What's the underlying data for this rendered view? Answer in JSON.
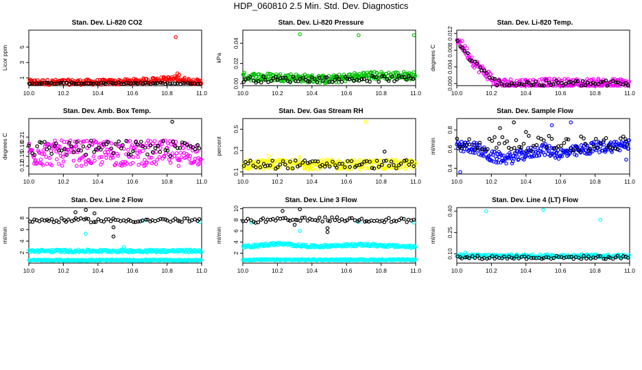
{
  "page": {
    "title": "HDP_060810  2.5 Min. Std. Dev. Diagnostics"
  },
  "chart_data": [
    {
      "id": "co2",
      "type": "scatter",
      "title": "Stan. Dev. Li-820 CO2",
      "ylabel": "Licor ppm",
      "xlim": [
        10.0,
        11.0
      ],
      "ylim": [
        0,
        7.2
      ],
      "xticks": [
        10.0,
        10.2,
        10.4,
        10.6,
        10.8,
        11.0
      ],
      "yticks": [
        1,
        3,
        5
      ],
      "yticklabels": [
        "1",
        "3",
        "5"
      ],
      "legend": "none",
      "series": [
        {
          "name": "primary",
          "color": "#ff0000",
          "base": [
            [
              10.0,
              0.45
            ],
            [
              10.5,
              0.45
            ],
            [
              10.7,
              0.65
            ],
            [
              10.85,
              0.9
            ],
            [
              11.0,
              0.4
            ]
          ],
          "jitter": 0.35,
          "outliers": [
            [
              10.85,
              6.3
            ],
            [
              10.86,
              1.6
            ],
            [
              10.87,
              1.4
            ],
            [
              10.72,
              1.0
            ],
            [
              10.78,
              1.1
            ]
          ]
        },
        {
          "name": "secondary",
          "color": "#000000",
          "base": [
            [
              10.0,
              0.3
            ],
            [
              11.0,
              0.3
            ]
          ],
          "jitter": 0.1,
          "outliers": []
        }
      ]
    },
    {
      "id": "pressure",
      "type": "scatter",
      "title": "Stan. Dev. Li-820 Pressure",
      "ylabel": "kPa",
      "xlim": [
        10.0,
        11.0
      ],
      "ylim": [
        -0.002,
        0.053
      ],
      "xticks": [
        10.0,
        10.2,
        10.4,
        10.6,
        10.8,
        11.0
      ],
      "yticks": [
        0.0,
        0.02,
        0.04
      ],
      "yticklabels": [
        "0.00",
        "0.02",
        "0.04"
      ],
      "legend": "none",
      "series": [
        {
          "name": "primary",
          "color": "#00c000",
          "base": [
            [
              10.0,
              0.007
            ],
            [
              10.3,
              0.006
            ],
            [
              10.5,
              0.004
            ],
            [
              10.7,
              0.008
            ],
            [
              11.0,
              0.008
            ]
          ],
          "jitter": 0.004,
          "outliers": [
            [
              10.33,
              0.049
            ],
            [
              10.67,
              0.048
            ],
            [
              10.99,
              0.048
            ]
          ]
        },
        {
          "name": "secondary",
          "color": "#000000",
          "base": [
            [
              10.0,
              0.004
            ],
            [
              11.0,
              0.005
            ]
          ],
          "jitter": 0.003,
          "outliers": []
        }
      ]
    },
    {
      "id": "temp",
      "type": "scatter",
      "title": "Stan. Dev. Li-820 Temp.",
      "ylabel": "degrees C",
      "xlim": [
        10.0,
        11.0
      ],
      "ylim": [
        -0.0005,
        0.0128
      ],
      "xticks": [
        10.0,
        10.2,
        10.4,
        10.6,
        10.8,
        11.0
      ],
      "yticks": [
        0.0,
        0.004,
        0.008,
        0.012
      ],
      "yticklabels": [
        "0.000",
        "0.004",
        "0.008",
        "0.012"
      ],
      "legend": "none",
      "series": [
        {
          "name": "primary",
          "color": "#ff00ff",
          "base": [
            [
              10.0,
              0.011
            ],
            [
              10.05,
              0.008
            ],
            [
              10.1,
              0.005
            ],
            [
              10.15,
              0.003
            ],
            [
              10.2,
              0.0015
            ],
            [
              10.22,
              0.0
            ],
            [
              11.0,
              0.0
            ]
          ],
          "jitter": 0.0012,
          "outliers": []
        },
        {
          "name": "secondary",
          "color": "#000000",
          "base": [
            [
              10.0,
              0.01
            ],
            [
              10.06,
              0.007
            ],
            [
              10.12,
              0.004
            ],
            [
              10.2,
              0.001
            ],
            [
              10.25,
              0.0
            ],
            [
              11.0,
              0.0
            ]
          ],
          "jitter": 0.0008,
          "outliers": []
        }
      ]
    },
    {
      "id": "boxtemp",
      "type": "scatter",
      "title": "Stan. Dev. Amb. Box Temp.",
      "ylabel": "degrees C",
      "xlim": [
        10.0,
        11.0
      ],
      "ylim": [
        0.095,
        0.268
      ],
      "xticks": [
        10.0,
        10.2,
        10.4,
        10.6,
        10.8,
        11.0
      ],
      "yticks": [
        0.12,
        0.15,
        0.18,
        0.21
      ],
      "yticklabels": [
        "0.12",
        "0.15",
        "0.18",
        "0.21"
      ],
      "legend": "none",
      "series": [
        {
          "name": "primary",
          "color": "#ff00ff",
          "base": [
            [
              10.0,
              0.16
            ],
            [
              11.0,
              0.16
            ]
          ],
          "jitter": 0.04,
          "outliers": []
        },
        {
          "name": "secondary",
          "color": "#000000",
          "base": [
            [
              10.0,
              0.175
            ],
            [
              11.0,
              0.175
            ]
          ],
          "jitter": 0.025,
          "outliers": [
            [
              10.83,
              0.258
            ]
          ]
        }
      ]
    },
    {
      "id": "rh",
      "type": "scatter",
      "title": "Stan. Dev. Gas Stream RH",
      "ylabel": "percent",
      "xlim": [
        10.0,
        11.0
      ],
      "ylim": [
        0.08,
        0.6
      ],
      "xticks": [
        10.0,
        10.2,
        10.4,
        10.6,
        10.8,
        11.0
      ],
      "yticks": [
        0.1,
        0.3,
        0.5
      ],
      "yticklabels": [
        "0.1",
        "0.3",
        "0.5"
      ],
      "legend": "none",
      "series": [
        {
          "name": "primary",
          "color": "#ffff00",
          "base": [
            [
              10.0,
              0.17
            ],
            [
              11.0,
              0.17
            ]
          ],
          "jitter": 0.045,
          "outliers": [
            [
              10.71,
              0.57
            ],
            [
              10.15,
              0.25
            ],
            [
              10.33,
              0.24
            ]
          ]
        },
        {
          "name": "secondary",
          "color": "#000000",
          "base": [
            [
              10.0,
              0.17
            ],
            [
              11.0,
              0.17
            ]
          ],
          "jitter": 0.04,
          "outliers": [
            [
              10.82,
              0.29
            ]
          ]
        }
      ]
    },
    {
      "id": "sampleflow",
      "type": "scatter",
      "title": "Stan. Dev. Sample Flow",
      "ylabel": "ml/min",
      "xlim": [
        10.0,
        11.0
      ],
      "ylim": [
        0.34,
        0.92
      ],
      "xticks": [
        10.0,
        10.2,
        10.4,
        10.6,
        10.8,
        11.0
      ],
      "yticks": [
        0.4,
        0.6,
        0.8
      ],
      "yticklabels": [
        "0.4",
        "0.6",
        "0.8"
      ],
      "legend": "none",
      "series": [
        {
          "name": "primary",
          "color": "#0000ff",
          "base": [
            [
              10.0,
              0.63
            ],
            [
              10.1,
              0.62
            ],
            [
              10.2,
              0.52
            ],
            [
              10.3,
              0.5
            ],
            [
              10.4,
              0.55
            ],
            [
              10.5,
              0.6
            ],
            [
              10.6,
              0.55
            ],
            [
              10.7,
              0.58
            ],
            [
              10.8,
              0.62
            ],
            [
              11.0,
              0.64
            ]
          ],
          "jitter": 0.06,
          "outliers": [
            [
              10.55,
              0.85
            ],
            [
              10.66,
              0.88
            ],
            [
              10.02,
              0.36
            ],
            [
              10.98,
              0.49
            ]
          ]
        },
        {
          "name": "secondary",
          "color": "#000000",
          "base": [
            [
              10.0,
              0.66
            ],
            [
              11.0,
              0.66
            ]
          ],
          "jitter": 0.08,
          "outliers": [
            [
              10.33,
              0.88
            ],
            [
              10.25,
              0.82
            ],
            [
              10.4,
              0.78
            ]
          ]
        }
      ]
    },
    {
      "id": "line2",
      "type": "scatter",
      "title": "Stan. Dev. Line 2 Flow",
      "ylabel": "ml/min",
      "xlim": [
        10.0,
        11.0
      ],
      "ylim": [
        0.2,
        9.8
      ],
      "xticks": [
        10.0,
        10.2,
        10.4,
        10.6,
        10.8,
        11.0
      ],
      "yticks": [
        2,
        4,
        6,
        8
      ],
      "yticklabels": [
        "2",
        "4",
        "6",
        "8"
      ],
      "legend": "none",
      "series": [
        {
          "name": "upper",
          "color": "#00ffff",
          "base": [
            [
              10.0,
              2.3
            ],
            [
              11.0,
              2.3
            ]
          ],
          "jitter": 0.25,
          "outliers": [
            [
              10.33,
              5.3
            ],
            [
              10.55,
              3.0
            ],
            [
              10.66,
              7.5
            ],
            [
              10.99,
              7.3
            ]
          ]
        },
        {
          "name": "lower",
          "color": "#00ffff",
          "base": [
            [
              10.0,
              0.7
            ],
            [
              11.0,
              0.7
            ]
          ],
          "jitter": 0.12,
          "outliers": []
        },
        {
          "name": "secondary",
          "color": "#000000",
          "base": [
            [
              10.0,
              7.6
            ],
            [
              11.0,
              7.6
            ]
          ],
          "jitter": 0.35,
          "outliers": [
            [
              10.49,
              4.8
            ],
            [
              10.49,
              6.4
            ],
            [
              10.33,
              9.4
            ],
            [
              10.27,
              9.0
            ],
            [
              10.38,
              8.8
            ]
          ]
        }
      ]
    },
    {
      "id": "line3",
      "type": "scatter",
      "title": "Stan. Dev. Line 3 Flow",
      "ylabel": "ml/min",
      "xlim": [
        10.0,
        11.0
      ],
      "ylim": [
        0.2,
        10.2
      ],
      "xticks": [
        10.0,
        10.2,
        10.4,
        10.6,
        10.8,
        11.0
      ],
      "yticks": [
        2,
        4,
        6,
        8,
        10
      ],
      "yticklabels": [
        "2",
        "4",
        "6",
        "8",
        "10"
      ],
      "legend": "none",
      "series": [
        {
          "name": "upper",
          "color": "#00ffff",
          "base": [
            [
              10.0,
              3.1
            ],
            [
              10.2,
              3.7
            ],
            [
              10.4,
              3.2
            ],
            [
              10.7,
              3.5
            ],
            [
              11.0,
              3.1
            ]
          ],
          "jitter": 0.25,
          "outliers": [
            [
              10.33,
              6.0
            ],
            [
              10.05,
              7.5
            ],
            [
              10.67,
              7.6
            ],
            [
              10.99,
              7.5
            ]
          ]
        },
        {
          "name": "lower",
          "color": "#00ffff",
          "base": [
            [
              10.0,
              0.8
            ],
            [
              11.0,
              0.8
            ]
          ],
          "jitter": 0.12,
          "outliers": []
        },
        {
          "name": "secondary",
          "color": "#000000",
          "base": [
            [
              10.0,
              7.8
            ],
            [
              10.5,
              8.1
            ],
            [
              11.0,
              7.9
            ]
          ],
          "jitter": 0.4,
          "outliers": [
            [
              10.33,
              9.9
            ],
            [
              10.23,
              9.6
            ],
            [
              10.49,
              5.8
            ],
            [
              10.49,
              6.5
            ],
            [
              10.3,
              7.1
            ]
          ]
        }
      ]
    },
    {
      "id": "line4",
      "type": "scatter",
      "title": "Stan. Dev. Line 4 (LT) Flow",
      "ylabel": "ml/min",
      "xlim": [
        10.0,
        11.0
      ],
      "ylim": [
        0.035,
        0.425
      ],
      "xticks": [
        10.0,
        10.2,
        10.4,
        10.6,
        10.8,
        11.0
      ],
      "yticks": [
        0.1,
        0.25,
        0.4
      ],
      "yticklabels": [
        "0.10",
        "0.25",
        "0.40"
      ],
      "legend": "none",
      "series": [
        {
          "name": "primary",
          "color": "#00ffff",
          "base": [
            [
              10.0,
              0.085
            ],
            [
              11.0,
              0.085
            ]
          ],
          "jitter": 0.012,
          "outliers": [
            [
              10.17,
              0.4
            ],
            [
              10.5,
              0.41
            ],
            [
              10.83,
              0.34
            ],
            [
              10.05,
              0.11
            ]
          ]
        },
        {
          "name": "secondary",
          "color": "#000000",
          "base": [
            [
              10.0,
              0.075
            ],
            [
              11.0,
              0.075
            ]
          ],
          "jitter": 0.012,
          "outliers": []
        }
      ]
    }
  ]
}
